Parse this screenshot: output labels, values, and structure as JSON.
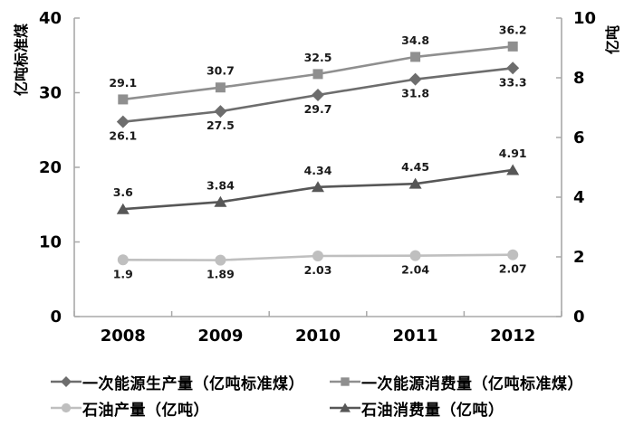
{
  "chart_data": {
    "type": "line",
    "x": [
      "2008",
      "2009",
      "2010",
      "2011",
      "2012"
    ],
    "left_axis": {
      "title": "亿吨标准煤",
      "min": 0,
      "max": 40,
      "ticks": [
        0,
        10,
        20,
        30,
        40
      ]
    },
    "right_axis": {
      "title": "亿吨",
      "min": 0,
      "max": 10,
      "ticks": [
        0,
        2,
        4,
        6,
        8,
        10
      ]
    },
    "series": [
      {
        "name": "一次能源生产量（亿吨标准煤）",
        "axis": "left",
        "marker": "diamond",
        "color": "#6d6d6d",
        "values": [
          26.1,
          27.5,
          29.7,
          31.8,
          33.3
        ],
        "label_position": "below"
      },
      {
        "name": "一次能源消费量（亿吨标准煤）",
        "axis": "left",
        "marker": "square",
        "color": "#8f8f8f",
        "values": [
          29.1,
          30.7,
          32.5,
          34.8,
          36.2
        ],
        "label_position": "above"
      },
      {
        "name": "石油产量（亿吨）",
        "axis": "right",
        "marker": "circle",
        "color": "#bfbfbf",
        "values": [
          1.9,
          1.89,
          2.03,
          2.04,
          2.07
        ],
        "label_position": "below"
      },
      {
        "name": "石油消费量（亿吨）",
        "axis": "right",
        "marker": "triangle",
        "color": "#575757",
        "values": [
          3.6,
          3.84,
          4.34,
          4.45,
          4.91
        ],
        "label_position": "above"
      }
    ],
    "legend_position": "bottom",
    "grid": false,
    "colors": {
      "axis_line": "#a9a9a9",
      "tick_text": "#000000",
      "data_label": "#1a1a1a"
    }
  }
}
